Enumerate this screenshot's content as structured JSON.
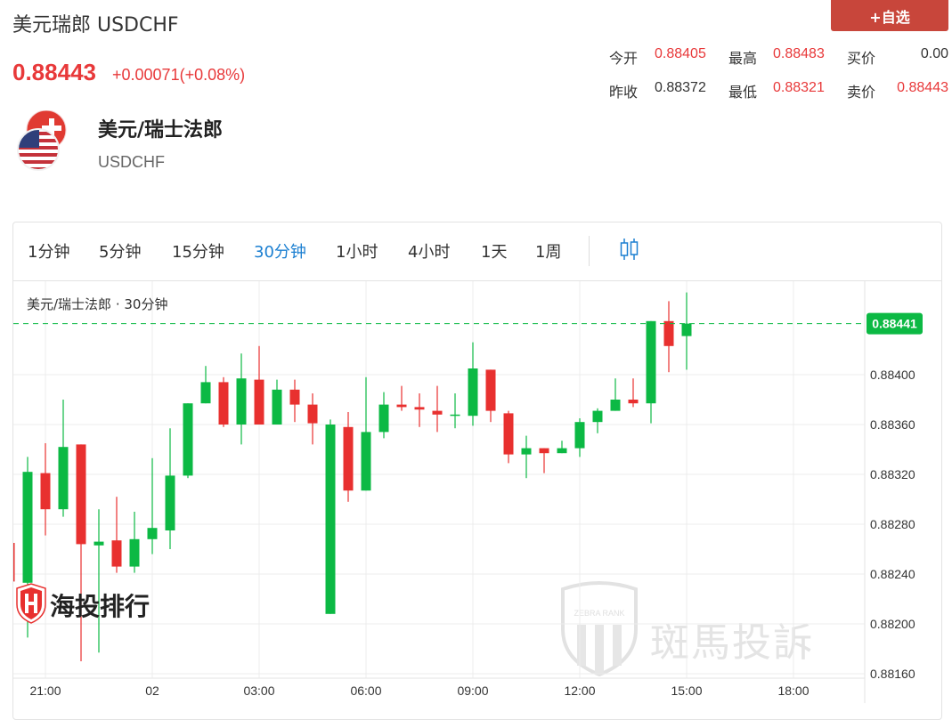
{
  "header": {
    "title": "美元瑞郎 USDCHF",
    "price": "0.88443",
    "change": "+0.00071(+0.08%)",
    "watch_button": "+自选"
  },
  "stats": [
    {
      "label": "今开",
      "value": "0.88405",
      "color": "red"
    },
    {
      "label": "最高",
      "value": "0.88483",
      "color": "red"
    },
    {
      "label": "买价",
      "value": "0.00",
      "color": "black"
    },
    {
      "label": "昨收",
      "value": "0.88372",
      "color": "black"
    },
    {
      "label": "最低",
      "value": "0.88321",
      "color": "red"
    },
    {
      "label": "卖价",
      "value": "0.88443",
      "color": "red"
    }
  ],
  "instrument": {
    "name": "美元/瑞士法郎",
    "code": "USDCHF",
    "icon": "usd-chf-flags-icon"
  },
  "tabs": [
    {
      "label": "1分钟"
    },
    {
      "label": "5分钟"
    },
    {
      "label": "15分钟"
    },
    {
      "label": "30分钟",
      "active": true
    },
    {
      "label": "1小时"
    },
    {
      "label": "4小时"
    },
    {
      "label": "1天"
    },
    {
      "label": "1周"
    }
  ],
  "chart_type_icon": "candlestick-icon",
  "watermarks": {
    "left": "海投排行",
    "right": "斑馬投訴",
    "right_badge": "ZEBRA RANK"
  },
  "colors": {
    "up": "#0cb944",
    "down": "#e8302f",
    "active_tab": "#1b7fd1",
    "accent": "#c8463b"
  },
  "chart_data": {
    "type": "candlestick",
    "legend": "美元/瑞士法郎 · 30分钟",
    "ylim": [
      0.8814,
      0.8848
    ],
    "yticks": [
      "0.88400",
      "0.88360",
      "0.88320",
      "0.88280",
      "0.88240",
      "0.88200",
      "0.88160"
    ],
    "xticks": [
      "21:00",
      "02",
      "03:00",
      "06:00",
      "09:00",
      "12:00",
      "15:00",
      "18:00"
    ],
    "last_price": "0.88441",
    "grid": true,
    "candles": [
      {
        "t": "20:00",
        "o": 0.88265,
        "h": 0.88265,
        "l": 0.88234,
        "c": 0.88234
      },
      {
        "t": "20:30",
        "o": 0.88233,
        "h": 0.88334,
        "l": 0.88189,
        "c": 0.88322
      },
      {
        "t": "21:00",
        "o": 0.88321,
        "h": 0.88345,
        "l": 0.88271,
        "c": 0.88292
      },
      {
        "t": "21:30",
        "o": 0.88292,
        "h": 0.8838,
        "l": 0.88286,
        "c": 0.88342
      },
      {
        "t": "22:00",
        "o": 0.88344,
        "h": 0.88344,
        "l": 0.8817,
        "c": 0.88264
      },
      {
        "t": "22:30",
        "o": 0.88263,
        "h": 0.88292,
        "l": 0.88177,
        "c": 0.88266
      },
      {
        "t": "23:00",
        "o": 0.88267,
        "h": 0.88302,
        "l": 0.88241,
        "c": 0.88246
      },
      {
        "t": "23:30",
        "o": 0.88246,
        "h": 0.8829,
        "l": 0.88241,
        "c": 0.88268
      },
      {
        "t": "00:00",
        "o": 0.88268,
        "h": 0.88333,
        "l": 0.88256,
        "c": 0.88277
      },
      {
        "t": "00:30",
        "o": 0.88275,
        "h": 0.88357,
        "l": 0.8826,
        "c": 0.88319
      },
      {
        "t": "01:00",
        "o": 0.88319,
        "h": 0.88377,
        "l": 0.88317,
        "c": 0.88377
      },
      {
        "t": "01:30",
        "o": 0.88377,
        "h": 0.88407,
        "l": 0.88377,
        "c": 0.88394
      },
      {
        "t": "02:00",
        "o": 0.88394,
        "h": 0.88398,
        "l": 0.88358,
        "c": 0.8836
      },
      {
        "t": "02:30",
        "o": 0.8836,
        "h": 0.88417,
        "l": 0.88344,
        "c": 0.88397
      },
      {
        "t": "03:00",
        "o": 0.88396,
        "h": 0.88423,
        "l": 0.8836,
        "c": 0.8836
      },
      {
        "t": "03:30",
        "o": 0.8836,
        "h": 0.88396,
        "l": 0.8836,
        "c": 0.88388
      },
      {
        "t": "04:00",
        "o": 0.88388,
        "h": 0.88396,
        "l": 0.88362,
        "c": 0.88376
      },
      {
        "t": "04:30",
        "o": 0.88376,
        "h": 0.88385,
        "l": 0.88344,
        "c": 0.88361
      },
      {
        "t": "05:00",
        "o": 0.88208,
        "h": 0.88364,
        "l": 0.88208,
        "c": 0.8836
      },
      {
        "t": "05:30",
        "o": 0.88358,
        "h": 0.8837,
        "l": 0.88298,
        "c": 0.88307
      },
      {
        "t": "06:00",
        "o": 0.88307,
        "h": 0.88398,
        "l": 0.88307,
        "c": 0.88354
      },
      {
        "t": "06:30",
        "o": 0.88354,
        "h": 0.88386,
        "l": 0.88349,
        "c": 0.88376
      },
      {
        "t": "07:00",
        "o": 0.88376,
        "h": 0.88391,
        "l": 0.88371,
        "c": 0.88374
      },
      {
        "t": "07:30",
        "o": 0.88374,
        "h": 0.88385,
        "l": 0.88358,
        "c": 0.88372
      },
      {
        "t": "08:00",
        "o": 0.88371,
        "h": 0.88391,
        "l": 0.88354,
        "c": 0.88368
      },
      {
        "t": "08:30",
        "o": 0.88367,
        "h": 0.88385,
        "l": 0.88357,
        "c": 0.88368
      },
      {
        "t": "09:00",
        "o": 0.88367,
        "h": 0.88426,
        "l": 0.88359,
        "c": 0.88405
      },
      {
        "t": "09:30",
        "o": 0.88404,
        "h": 0.88404,
        "l": 0.88362,
        "c": 0.88371
      },
      {
        "t": "10:00",
        "o": 0.88369,
        "h": 0.88371,
        "l": 0.88329,
        "c": 0.88336
      },
      {
        "t": "10:30",
        "o": 0.88336,
        "h": 0.88351,
        "l": 0.88317,
        "c": 0.88341
      },
      {
        "t": "11:00",
        "o": 0.88341,
        "h": 0.88341,
        "l": 0.88321,
        "c": 0.88337
      },
      {
        "t": "11:30",
        "o": 0.88337,
        "h": 0.88347,
        "l": 0.88337,
        "c": 0.88341
      },
      {
        "t": "12:00",
        "o": 0.88341,
        "h": 0.88365,
        "l": 0.88334,
        "c": 0.88362
      },
      {
        "t": "12:30",
        "o": 0.88362,
        "h": 0.88373,
        "l": 0.88353,
        "c": 0.88371
      },
      {
        "t": "13:00",
        "o": 0.88371,
        "h": 0.88397,
        "l": 0.88371,
        "c": 0.8838
      },
      {
        "t": "13:30",
        "o": 0.8838,
        "h": 0.88397,
        "l": 0.88374,
        "c": 0.88377
      },
      {
        "t": "14:00",
        "o": 0.88377,
        "h": 0.88443,
        "l": 0.88361,
        "c": 0.88443
      },
      {
        "t": "14:30",
        "o": 0.88443,
        "h": 0.88459,
        "l": 0.88402,
        "c": 0.88423
      },
      {
        "t": "15:00",
        "o": 0.88431,
        "h": 0.88466,
        "l": 0.88404,
        "c": 0.88441
      }
    ]
  }
}
